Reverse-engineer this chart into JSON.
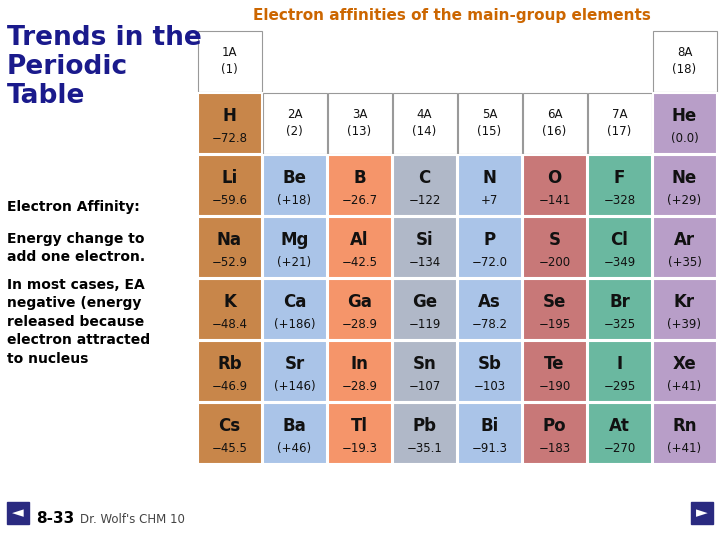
{
  "title_left": "Trends in the\nPeriodic\nTable",
  "title_right": "Electron affinities of the main-group elements",
  "subtitle1": "Electron Affinity:",
  "subtitle2": "Energy change to\nadd one electron.",
  "subtitle3": "In most cases, EA\nnegative (energy\nreleased because\nelectron attracted\nto nucleus",
  "footer_num": "8-33",
  "footer_txt": "Dr. Wolf's CHM 10",
  "bg_color": "#ffffff",
  "title_left_color": "#1a1a8c",
  "title_right_color": "#cc6600",
  "text_color": "#000000",
  "elements": [
    {
      "symbol": "H",
      "value": "−72.8",
      "row": 1,
      "col": 0,
      "color": "#c8864a"
    },
    {
      "symbol": "He",
      "value": "(0.0)",
      "row": 1,
      "col": 7,
      "color": "#b89ec8"
    },
    {
      "symbol": "Li",
      "value": "−59.6",
      "row": 2,
      "col": 0,
      "color": "#c8864a"
    },
    {
      "symbol": "Be",
      "value": "(+18)",
      "row": 2,
      "col": 1,
      "color": "#aac4e8"
    },
    {
      "symbol": "B",
      "value": "−26.7",
      "row": 2,
      "col": 2,
      "color": "#f5956a"
    },
    {
      "symbol": "C",
      "value": "−122",
      "row": 2,
      "col": 3,
      "color": "#b0b8c8"
    },
    {
      "symbol": "N",
      "value": "+7",
      "row": 2,
      "col": 4,
      "color": "#aac4e8"
    },
    {
      "symbol": "O",
      "value": "−141",
      "row": 2,
      "col": 5,
      "color": "#c87878"
    },
    {
      "symbol": "F",
      "value": "−328",
      "row": 2,
      "col": 6,
      "color": "#6ab8a0"
    },
    {
      "symbol": "Ne",
      "value": "(+29)",
      "row": 2,
      "col": 7,
      "color": "#b89ec8"
    },
    {
      "symbol": "Na",
      "value": "−52.9",
      "row": 3,
      "col": 0,
      "color": "#c8864a"
    },
    {
      "symbol": "Mg",
      "value": "(+21)",
      "row": 3,
      "col": 1,
      "color": "#aac4e8"
    },
    {
      "symbol": "Al",
      "value": "−42.5",
      "row": 3,
      "col": 2,
      "color": "#f5956a"
    },
    {
      "symbol": "Si",
      "value": "−134",
      "row": 3,
      "col": 3,
      "color": "#b0b8c8"
    },
    {
      "symbol": "P",
      "value": "−72.0",
      "row": 3,
      "col": 4,
      "color": "#aac4e8"
    },
    {
      "symbol": "S",
      "value": "−200",
      "row": 3,
      "col": 5,
      "color": "#c87878"
    },
    {
      "symbol": "Cl",
      "value": "−349",
      "row": 3,
      "col": 6,
      "color": "#6ab8a0"
    },
    {
      "symbol": "Ar",
      "value": "(+35)",
      "row": 3,
      "col": 7,
      "color": "#b89ec8"
    },
    {
      "symbol": "K",
      "value": "−48.4",
      "row": 4,
      "col": 0,
      "color": "#c8864a"
    },
    {
      "symbol": "Ca",
      "value": "(+186)",
      "row": 4,
      "col": 1,
      "color": "#aac4e8"
    },
    {
      "symbol": "Ga",
      "value": "−28.9",
      "row": 4,
      "col": 2,
      "color": "#f5956a"
    },
    {
      "symbol": "Ge",
      "value": "−119",
      "row": 4,
      "col": 3,
      "color": "#b0b8c8"
    },
    {
      "symbol": "As",
      "value": "−78.2",
      "row": 4,
      "col": 4,
      "color": "#aac4e8"
    },
    {
      "symbol": "Se",
      "value": "−195",
      "row": 4,
      "col": 5,
      "color": "#c87878"
    },
    {
      "symbol": "Br",
      "value": "−325",
      "row": 4,
      "col": 6,
      "color": "#6ab8a0"
    },
    {
      "symbol": "Kr",
      "value": "(+39)",
      "row": 4,
      "col": 7,
      "color": "#b89ec8"
    },
    {
      "symbol": "Rb",
      "value": "−46.9",
      "row": 5,
      "col": 0,
      "color": "#c8864a"
    },
    {
      "symbol": "Sr",
      "value": "(+146)",
      "row": 5,
      "col": 1,
      "color": "#aac4e8"
    },
    {
      "symbol": "In",
      "value": "−28.9",
      "row": 5,
      "col": 2,
      "color": "#f5956a"
    },
    {
      "symbol": "Sn",
      "value": "−107",
      "row": 5,
      "col": 3,
      "color": "#b0b8c8"
    },
    {
      "symbol": "Sb",
      "value": "−103",
      "row": 5,
      "col": 4,
      "color": "#aac4e8"
    },
    {
      "symbol": "Te",
      "value": "−190",
      "row": 5,
      "col": 5,
      "color": "#c87878"
    },
    {
      "symbol": "I",
      "value": "−295",
      "row": 5,
      "col": 6,
      "color": "#6ab8a0"
    },
    {
      "symbol": "Xe",
      "value": "(+41)",
      "row": 5,
      "col": 7,
      "color": "#b89ec8"
    },
    {
      "symbol": "Cs",
      "value": "−45.5",
      "row": 6,
      "col": 0,
      "color": "#c8864a"
    },
    {
      "symbol": "Ba",
      "value": "(+46)",
      "row": 6,
      "col": 1,
      "color": "#aac4e8"
    },
    {
      "symbol": "Tl",
      "value": "−19.3",
      "row": 6,
      "col": 2,
      "color": "#f5956a"
    },
    {
      "symbol": "Pb",
      "value": "−35.1",
      "row": 6,
      "col": 3,
      "color": "#b0b8c8"
    },
    {
      "symbol": "Bi",
      "value": "−91.3",
      "row": 6,
      "col": 4,
      "color": "#aac4e8"
    },
    {
      "symbol": "Po",
      "value": "−183",
      "row": 6,
      "col": 5,
      "color": "#c87878"
    },
    {
      "symbol": "At",
      "value": "−270",
      "row": 6,
      "col": 6,
      "color": "#6ab8a0"
    },
    {
      "symbol": "Rn",
      "value": "(+41)",
      "row": 6,
      "col": 7,
      "color": "#b89ec8"
    }
  ],
  "headers_row0": [
    {
      "label": "1A\n(1)",
      "col": 0
    },
    {
      "label": "8A\n(18)",
      "col": 7
    }
  ],
  "headers_row1": [
    {
      "label": "2A\n(2)",
      "col": 1
    },
    {
      "label": "3A\n(13)",
      "col": 2
    },
    {
      "label": "4A\n(14)",
      "col": 3
    },
    {
      "label": "5A\n(15)",
      "col": 4
    },
    {
      "label": "6A\n(16)",
      "col": 5
    },
    {
      "label": "7A\n(17)",
      "col": 6
    }
  ]
}
